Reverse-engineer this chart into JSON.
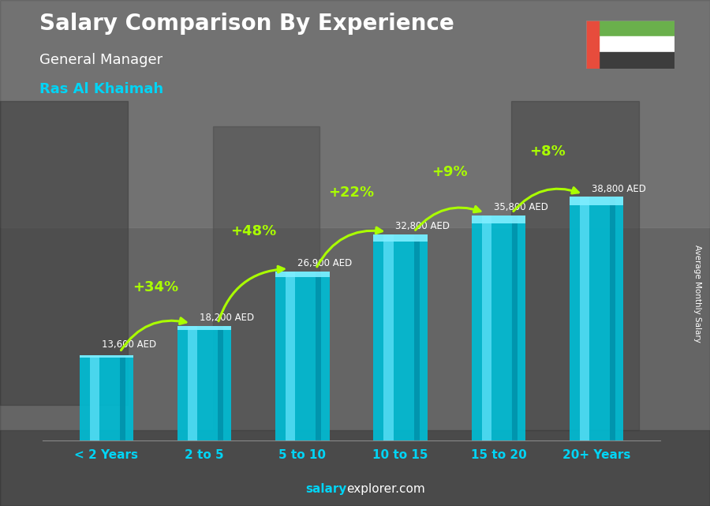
{
  "title": "Salary Comparison By Experience",
  "subtitle": "General Manager",
  "location": "Ras Al Khaimah",
  "ylabel": "Average Monthly Salary",
  "source_bold": "salary",
  "source_rest": "explorer.com",
  "categories": [
    "< 2 Years",
    "2 to 5",
    "5 to 10",
    "10 to 15",
    "15 to 20",
    "20+ Years"
  ],
  "values": [
    13600,
    18200,
    26900,
    32800,
    35800,
    38800
  ],
  "value_labels": [
    "13,600 AED",
    "18,200 AED",
    "26,900 AED",
    "32,800 AED",
    "35,800 AED",
    "38,800 AED"
  ],
  "pct_labels": [
    "+34%",
    "+48%",
    "+22%",
    "+9%",
    "+8%"
  ],
  "bar_main_color": "#00bcd4",
  "bar_highlight_color": "#4dd9f0",
  "bar_dark_color": "#0090aa",
  "bar_edge_color": "#80eeff",
  "bg_color": "#808080",
  "title_color": "#ffffff",
  "subtitle_color": "#ffffff",
  "location_color": "#00d4f5",
  "value_label_color": "#ffffff",
  "pct_color": "#aaff00",
  "arrow_color": "#aaff00",
  "source_bold_color": "#00d4f5",
  "source_color": "#ffffff",
  "flag_green": "#6ab04c",
  "flag_white": "#ffffff",
  "flag_black": "#3d3d3d",
  "flag_red": "#e74c3c",
  "ylim": [
    0,
    46000
  ],
  "figsize": [
    9.0,
    6.41
  ],
  "dpi": 100
}
